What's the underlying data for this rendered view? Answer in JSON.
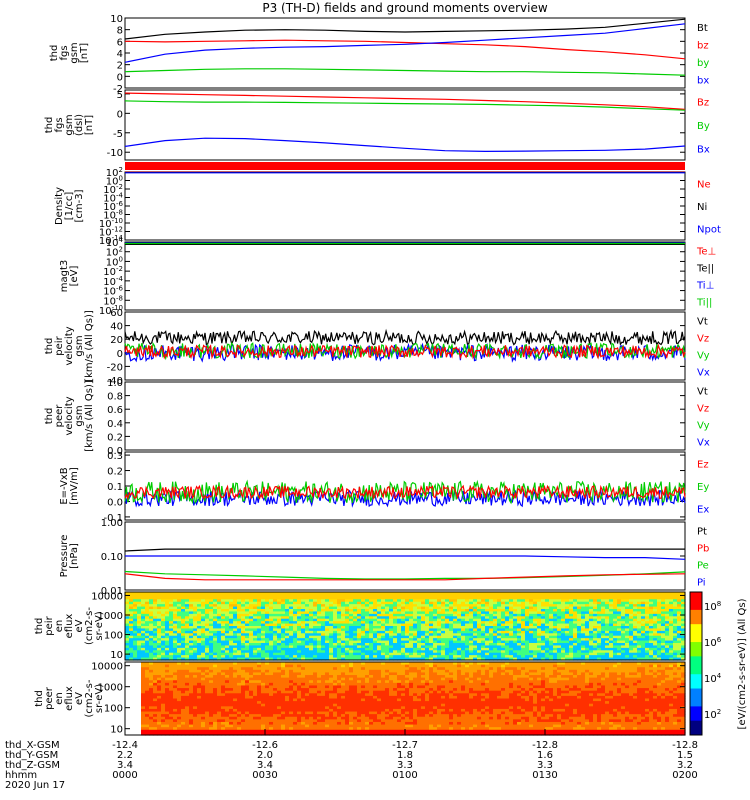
{
  "title": "P3 (TH-D) fields and ground moments overview",
  "date_label": "2020 Jun 17",
  "footer": {
    "row_labels": [
      "thd_X-GSM",
      "thd_Y-GSM",
      "thd_Z-GSM",
      "hhmm"
    ],
    "columns": [
      {
        "x": "-12.4",
        "y": "2.2",
        "z": "3.4",
        "t": "0000"
      },
      {
        "x": "-12.6",
        "y": "2.0",
        "z": "3.4",
        "t": "0030"
      },
      {
        "x": "-12.7",
        "y": "1.8",
        "z": "3.3",
        "t": "0100"
      },
      {
        "x": "-12.8",
        "y": "1.6",
        "z": "3.3",
        "t": "0130"
      },
      {
        "x": "-12.8",
        "y": "1.5",
        "z": "3.2",
        "t": "0200"
      }
    ]
  },
  "colorbar_label": "[eV/(cm2-s-sr-eV)] (All Qs)",
  "colors": {
    "black": "#000000",
    "red": "#ff0000",
    "green": "#00cc00",
    "blue": "#0000ff",
    "frame": "#000000"
  },
  "chart_data": [
    {
      "type": "line",
      "ylabel": [
        "thd",
        "fgs",
        "gsm",
        "[nT]"
      ],
      "yticks": [
        "10",
        "8",
        "6",
        "4",
        "2",
        "0",
        "-2"
      ],
      "ylim": [
        -2,
        10
      ],
      "legend": [
        "Bt",
        "bz",
        "by",
        "bx"
      ],
      "series": [
        {
          "name": "Bt",
          "color": "black",
          "values": [
            6.4,
            7.2,
            7.6,
            7.9,
            8.0,
            7.9,
            7.7,
            7.6,
            7.7,
            7.8,
            7.9,
            8.1,
            8.4,
            9.1,
            9.8
          ]
        },
        {
          "name": "bz",
          "color": "red",
          "values": [
            6.0,
            5.9,
            6.0,
            6.1,
            6.2,
            6.1,
            6.0,
            5.8,
            5.6,
            5.4,
            5.1,
            4.6,
            4.2,
            3.7,
            3.0
          ]
        },
        {
          "name": "by",
          "color": "green",
          "values": [
            0.8,
            1.0,
            1.2,
            1.3,
            1.3,
            1.2,
            1.1,
            1.0,
            0.9,
            0.8,
            0.8,
            0.7,
            0.6,
            0.4,
            0.2
          ]
        },
        {
          "name": "bx",
          "color": "blue",
          "values": [
            2.4,
            3.8,
            4.5,
            4.8,
            5.0,
            5.1,
            5.3,
            5.5,
            5.8,
            6.2,
            6.6,
            7.0,
            7.4,
            8.2,
            9.0
          ]
        }
      ]
    },
    {
      "type": "line",
      "ylabel": [
        "thd",
        "fgs",
        "gsm",
        "(dsl)",
        "[nT]"
      ],
      "yticks": [
        "5",
        "0",
        "-5",
        "-10"
      ],
      "ylim": [
        -12,
        6
      ],
      "legend": [
        "Bz",
        "By",
        "Bx"
      ],
      "series": [
        {
          "name": "Bz",
          "color": "red",
          "values": [
            5.2,
            5.0,
            4.8,
            4.6,
            4.4,
            4.2,
            4.0,
            3.8,
            3.6,
            3.3,
            3.0,
            2.6,
            2.2,
            1.7,
            1.0
          ]
        },
        {
          "name": "By",
          "color": "green",
          "values": [
            3.2,
            3.0,
            2.9,
            2.9,
            2.8,
            2.7,
            2.6,
            2.5,
            2.4,
            2.3,
            2.1,
            1.9,
            1.6,
            1.2,
            0.8
          ]
        },
        {
          "name": "Bx",
          "color": "blue",
          "values": [
            -8.5,
            -7.0,
            -6.4,
            -6.5,
            -7.0,
            -7.6,
            -8.3,
            -9.0,
            -9.6,
            -9.8,
            -9.7,
            -9.6,
            -9.5,
            -9.2,
            -8.4
          ]
        }
      ]
    },
    {
      "type": "line",
      "ylabel": [
        "Density",
        "[1/cc]",
        "[cm-3]"
      ],
      "yticks": [
        "10^2",
        "10^0",
        "10^-2",
        "10^-4",
        "10^-6",
        "10^-8",
        "10^-10",
        "10^-12",
        "10^-14"
      ],
      "ylim": [
        -14,
        2
      ],
      "log": true,
      "legend": [
        "Ne",
        "Ni",
        "Npot"
      ],
      "series": [
        {
          "name": "Ne",
          "color": "red",
          "values": [
            2,
            2,
            2,
            2,
            2,
            2,
            2,
            2,
            2,
            2,
            2,
            2,
            2,
            2,
            2
          ]
        },
        {
          "name": "Ni",
          "color": "black",
          "values": [
            1.9,
            1.9,
            1.9,
            1.9,
            1.9,
            1.9,
            1.9,
            1.9,
            1.9,
            1.9,
            1.9,
            1.9,
            1.9,
            1.9,
            1.9
          ]
        },
        {
          "name": "Npot",
          "color": "blue",
          "values": [
            1.8,
            1.8,
            1.8,
            1.8,
            1.8,
            1.8,
            1.8,
            1.8,
            1.8,
            1.8,
            1.8,
            1.8,
            1.8,
            1.8,
            1.8
          ]
        }
      ]
    },
    {
      "type": "line",
      "ylabel": [
        "magt3",
        "[eV]"
      ],
      "yticks": [
        "10^4",
        "10^2",
        "10^0",
        "10^-2",
        "10^-4",
        "10^-6",
        "10^-8",
        "10^-10"
      ],
      "ylim": [
        -10,
        4
      ],
      "log": true,
      "legend": [
        "Te⊥",
        "Te||",
        "Ti⊥",
        "Ti||"
      ],
      "series": [
        {
          "name": "Te⊥",
          "color": "red",
          "values": [
            3.6,
            3.6,
            3.6,
            3.6,
            3.6,
            3.6,
            3.6,
            3.6,
            3.6,
            3.6,
            3.6,
            3.6,
            3.6,
            3.6,
            3.6
          ]
        },
        {
          "name": "Te||",
          "color": "black",
          "values": [
            3.5,
            3.5,
            3.5,
            3.5,
            3.5,
            3.5,
            3.5,
            3.5,
            3.5,
            3.5,
            3.5,
            3.5,
            3.5,
            3.5,
            3.5
          ]
        },
        {
          "name": "Ti⊥",
          "color": "blue",
          "values": [
            3.8,
            3.8,
            3.8,
            3.8,
            3.8,
            3.8,
            3.8,
            3.8,
            3.8,
            3.8,
            3.8,
            3.8,
            3.8,
            3.8,
            3.8
          ]
        },
        {
          "name": "Ti||",
          "color": "green",
          "values": [
            3.7,
            3.7,
            3.7,
            3.7,
            3.7,
            3.7,
            3.7,
            3.7,
            3.7,
            3.7,
            3.7,
            3.7,
            3.7,
            3.7,
            3.7
          ]
        }
      ]
    },
    {
      "type": "line",
      "ylabel": [
        "thd",
        "peir",
        "velocity",
        "gsm",
        "[km/s (All Qs)]"
      ],
      "yticks": [
        "60",
        "40",
        "20",
        "0",
        "-20",
        "-40"
      ],
      "ylim": [
        -40,
        60
      ],
      "noisy": true,
      "legend": [
        "Vt",
        "Vz",
        "Vy",
        "Vx"
      ],
      "series": [
        {
          "name": "Vt",
          "color": "black",
          "mean": 22,
          "amp": 10
        },
        {
          "name": "Vx",
          "color": "blue",
          "mean": 0,
          "amp": 12
        },
        {
          "name": "Vy",
          "color": "green",
          "mean": 3,
          "amp": 11
        },
        {
          "name": "Vz",
          "color": "red",
          "mean": 2,
          "amp": 9
        }
      ]
    },
    {
      "type": "line",
      "ylabel": [
        "thd",
        "peer",
        "velocity",
        "gsm",
        "[km/s (All Qs)]"
      ],
      "yticks": [
        "1.0",
        "0.8",
        "0.6",
        "0.4",
        "0.2",
        "0.0"
      ],
      "ylim": [
        0,
        1
      ],
      "legend": [
        "Vt",
        "Vz",
        "Vy",
        "Vx"
      ],
      "series": []
    },
    {
      "type": "line",
      "ylabel": [
        "E=-VxB",
        "[mV/m]"
      ],
      "yticks": [
        "0.3",
        "0.2",
        "0.1",
        "0.0",
        "-0.1"
      ],
      "ylim": [
        -0.12,
        0.32
      ],
      "noisy": true,
      "legend": [
        "Ez",
        "Ey",
        "Ex"
      ],
      "series": [
        {
          "name": "Ex",
          "color": "blue",
          "mean": 0.02,
          "amp": 0.05
        },
        {
          "name": "Ey",
          "color": "green",
          "mean": 0.06,
          "amp": 0.07
        },
        {
          "name": "Ez",
          "color": "red",
          "mean": 0.06,
          "amp": 0.04
        }
      ]
    },
    {
      "type": "line",
      "ylabel": [
        "Pressure",
        "[nPa]"
      ],
      "yticks": [
        "1.00",
        "0.10",
        "0.01"
      ],
      "ylim": [
        -2,
        0
      ],
      "log": true,
      "legend": [
        "Pt",
        "Pb",
        "Pe",
        "Pi"
      ],
      "series": [
        {
          "name": "Pt",
          "color": "black",
          "values": [
            0.14,
            0.16,
            0.16,
            0.16,
            0.16,
            0.16,
            0.16,
            0.16,
            0.16,
            0.16,
            0.16,
            0.16,
            0.16,
            0.16,
            0.16
          ]
        },
        {
          "name": "Pi",
          "color": "blue",
          "values": [
            0.1,
            0.1,
            0.1,
            0.1,
            0.1,
            0.1,
            0.1,
            0.1,
            0.1,
            0.1,
            0.1,
            0.095,
            0.09,
            0.09,
            0.08
          ]
        },
        {
          "name": "Pe",
          "color": "green",
          "values": [
            0.035,
            0.03,
            0.028,
            0.026,
            0.024,
            0.022,
            0.021,
            0.021,
            0.022,
            0.022,
            0.023,
            0.025,
            0.027,
            0.03,
            0.034
          ]
        },
        {
          "name": "Pb",
          "color": "red",
          "values": [
            0.03,
            0.022,
            0.02,
            0.02,
            0.02,
            0.02,
            0.02,
            0.02,
            0.02,
            0.022,
            0.024,
            0.026,
            0.028,
            0.029,
            0.03
          ]
        }
      ]
    },
    {
      "type": "heatmap",
      "ylabel": [
        "thd",
        "peir",
        "en",
        "eflux",
        "eV",
        "(cm2-s-",
        "sr-eV)"
      ],
      "yticks": [
        "10000",
        "1000",
        "100",
        "10"
      ],
      "ylim": [
        5,
        15000
      ],
      "log": true,
      "colorbar_ticks": [
        "10^8",
        "10^6",
        "10^4",
        "10^2"
      ]
    },
    {
      "type": "heatmap",
      "ylabel": [
        "thd",
        "peer",
        "en",
        "eflux",
        "eV",
        "(cm2-s-",
        "sr-eV)"
      ],
      "yticks": [
        "10000",
        "1000",
        "100",
        "10"
      ],
      "ylim": [
        5,
        15000
      ],
      "log": true,
      "colorbar_ticks": [
        "10^8",
        "10^6",
        "10^4",
        "10^2"
      ]
    }
  ]
}
